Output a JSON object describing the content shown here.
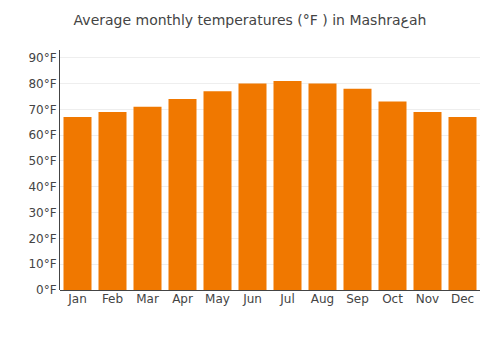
{
  "chart_data": {
    "type": "bar",
    "title": "Average monthly temperatures (°F ) in Mashraع‎ah",
    "categories": [
      "Jan",
      "Feb",
      "Mar",
      "Apr",
      "May",
      "Jun",
      "Jul",
      "Aug",
      "Sep",
      "Oct",
      "Nov",
      "Dec"
    ],
    "values": [
      67,
      69,
      71,
      74,
      77,
      80,
      81,
      80,
      78,
      73,
      69,
      67
    ],
    "color": "#F07800",
    "ylim": [
      0,
      93
    ],
    "yticks": [
      {
        "value": 0,
        "label": "0°F"
      },
      {
        "value": 10,
        "label": "10°F"
      },
      {
        "value": 20,
        "label": "20°F"
      },
      {
        "value": 30,
        "label": "30°F"
      },
      {
        "value": 40,
        "label": "40°F"
      },
      {
        "value": 50,
        "label": "50°F"
      },
      {
        "value": 60,
        "label": "60°F"
      },
      {
        "value": 70,
        "label": "70°F"
      },
      {
        "value": 80,
        "label": "80°F"
      },
      {
        "value": 90,
        "label": "90°F"
      }
    ],
    "grid": true
  }
}
